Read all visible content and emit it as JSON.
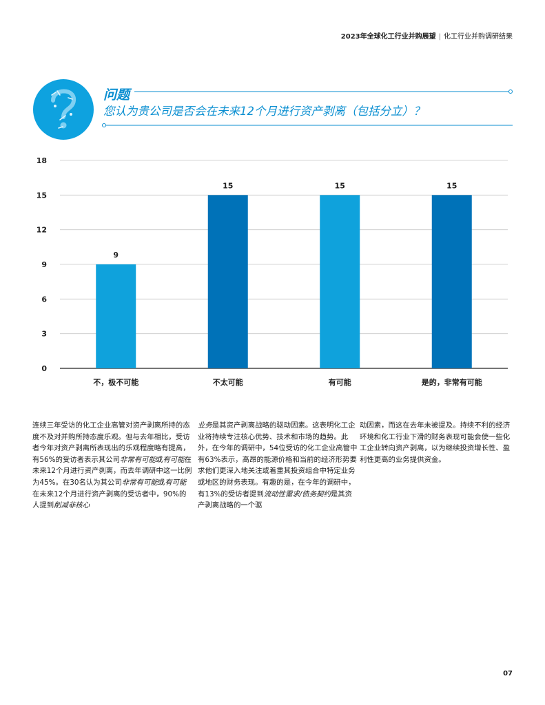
{
  "header": {
    "title": "2023年全球化工行业并购展望",
    "subtitle": "化工行业并购调研结果"
  },
  "question": {
    "label": "问题",
    "text": "您认为贵公司是否会在未来12个月进行资产剥离（包括分立）？"
  },
  "chart_data": {
    "type": "bar",
    "categories": [
      "不，极不可能",
      "不太可能",
      "有可能",
      "是的，非常有可能"
    ],
    "values": [
      9,
      15,
      15,
      15
    ],
    "ylim": [
      0,
      18
    ],
    "yticks": [
      0,
      3,
      6,
      9,
      12,
      15,
      18
    ],
    "grid": true,
    "bar_colors": [
      "#0fa2dc",
      "#0072b8",
      "#0fa2dc",
      "#0072b8"
    ],
    "data_labels": [
      "9",
      "15",
      "15",
      "15"
    ]
  },
  "body": {
    "col1": [
      {
        "t": "连续三年受访的化工企业高管对资产剥离所持的态度不及对并购所持态度乐观。但与去年相比，受访者今年对资产剥离所表现出的乐观程度略有提高，有56%的受访者表示其公司"
      },
      {
        "t": "非常有可能",
        "i": true
      },
      {
        "t": "或"
      },
      {
        "t": "有可能",
        "i": true
      },
      {
        "t": "在未来12个月进行资产剥离，而去年调研中这一比例为45%。在30名认为其公司"
      },
      {
        "t": "非常有可能",
        "i": true
      },
      {
        "t": "或"
      },
      {
        "t": "有可能",
        "i": true
      },
      {
        "t": "在未来12个月进行资产剥离的受访者中，90%的人提到"
      },
      {
        "t": "削减非核心",
        "i": true
      }
    ],
    "col2": [
      {
        "t": "业务",
        "i": true
      },
      {
        "t": "是其资产剥离战略的驱动因素。这表明化工企业将持续专注核心优势、技术和市场的趋势。此外，在今年的调研中，54位受访的化工企业高管中有63%表示，高昂的能源价格和当前的经济形势要求他们更深入地关注或着重其投资组合中特定业务或地区的财务表现。有趣的是，在今年的调研中，有13%的受访者提到"
      },
      {
        "t": "流动性需求/债务契约",
        "i": true
      },
      {
        "t": "是其资产剥离战略的一个驱"
      }
    ],
    "col3": [
      {
        "t": "动因素，而这在去年未被提及。持续不利的经济环境和化工行业下滑的财务表现可能会使一些化工企业转向资产剥离，以为继续投资增长性、盈利性更高的业务提供资金。"
      }
    ]
  },
  "page_number": "07",
  "colors": {
    "accent": "#0b8fd1",
    "bar_light": "#0fa2dc",
    "bar_dark": "#0072b8",
    "grid": "#c9c9c9"
  }
}
